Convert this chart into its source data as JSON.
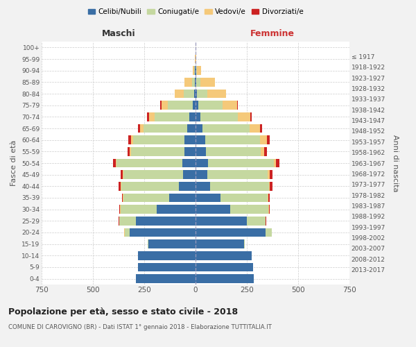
{
  "age_groups": [
    "0-4",
    "5-9",
    "10-14",
    "15-19",
    "20-24",
    "25-29",
    "30-34",
    "35-39",
    "40-44",
    "45-49",
    "50-54",
    "55-59",
    "60-64",
    "65-69",
    "70-74",
    "75-79",
    "80-84",
    "85-89",
    "90-94",
    "95-99",
    "100+"
  ],
  "birth_years": [
    "2013-2017",
    "2008-2012",
    "2003-2007",
    "1998-2002",
    "1993-1997",
    "1988-1992",
    "1983-1987",
    "1978-1982",
    "1973-1977",
    "1968-1972",
    "1963-1967",
    "1958-1962",
    "1953-1957",
    "1948-1952",
    "1943-1947",
    "1938-1942",
    "1933-1937",
    "1928-1932",
    "1923-1927",
    "1918-1922",
    "≤ 1917"
  ],
  "colors": {
    "celibi": "#3a6ea5",
    "coniugati": "#c5d8a0",
    "vedovi": "#f5c97a",
    "divorziati": "#cc2222"
  },
  "male": {
    "celibi": [
      290,
      280,
      280,
      230,
      320,
      290,
      190,
      130,
      80,
      60,
      65,
      55,
      55,
      40,
      30,
      15,
      6,
      3,
      2,
      1,
      1
    ],
    "coniugati": [
      0,
      0,
      0,
      4,
      25,
      80,
      175,
      220,
      280,
      290,
      320,
      260,
      250,
      215,
      170,
      120,
      50,
      15,
      5,
      0,
      0
    ],
    "vedovi": [
      0,
      0,
      0,
      0,
      2,
      2,
      3,
      4,
      5,
      5,
      5,
      5,
      10,
      15,
      25,
      30,
      45,
      35,
      8,
      1,
      0
    ],
    "divorziati": [
      0,
      0,
      0,
      0,
      2,
      2,
      3,
      5,
      10,
      10,
      12,
      10,
      12,
      12,
      10,
      8,
      2,
      0,
      0,
      0,
      0
    ]
  },
  "female": {
    "nubili": [
      285,
      280,
      275,
      235,
      340,
      250,
      170,
      120,
      72,
      58,
      62,
      52,
      48,
      35,
      22,
      12,
      7,
      5,
      3,
      1,
      1
    ],
    "coniugate": [
      0,
      0,
      0,
      5,
      30,
      90,
      185,
      230,
      285,
      295,
      320,
      265,
      265,
      230,
      185,
      120,
      50,
      18,
      5,
      0,
      0
    ],
    "vedove": [
      0,
      0,
      0,
      0,
      2,
      2,
      3,
      5,
      5,
      8,
      10,
      18,
      35,
      50,
      60,
      70,
      90,
      70,
      20,
      2,
      0
    ],
    "divorziate": [
      0,
      0,
      0,
      0,
      1,
      2,
      3,
      6,
      12,
      15,
      18,
      14,
      12,
      10,
      8,
      5,
      2,
      0,
      0,
      0,
      0
    ]
  },
  "xlim": 750,
  "title": "Popolazione per età, sesso e stato civile - 2018",
  "subtitle": "COMUNE DI CAROVIGNO (BR) - Dati ISTAT 1° gennaio 2018 - Elaborazione TUTTITALIA.IT",
  "ylabel": "Fasce di età",
  "ylabel_right": "Anni di nascita",
  "xlabel_maschi": "Maschi",
  "xlabel_femmine": "Femmine",
  "legend_labels": [
    "Celibi/Nubili",
    "Coniugati/e",
    "Vedovi/e",
    "Divorziati/e"
  ],
  "bg_color": "#f2f2f2",
  "plot_bg_color": "#ffffff",
  "grid_color": "#cccccc",
  "title_color": "#222222",
  "subtitle_color": "#555555"
}
